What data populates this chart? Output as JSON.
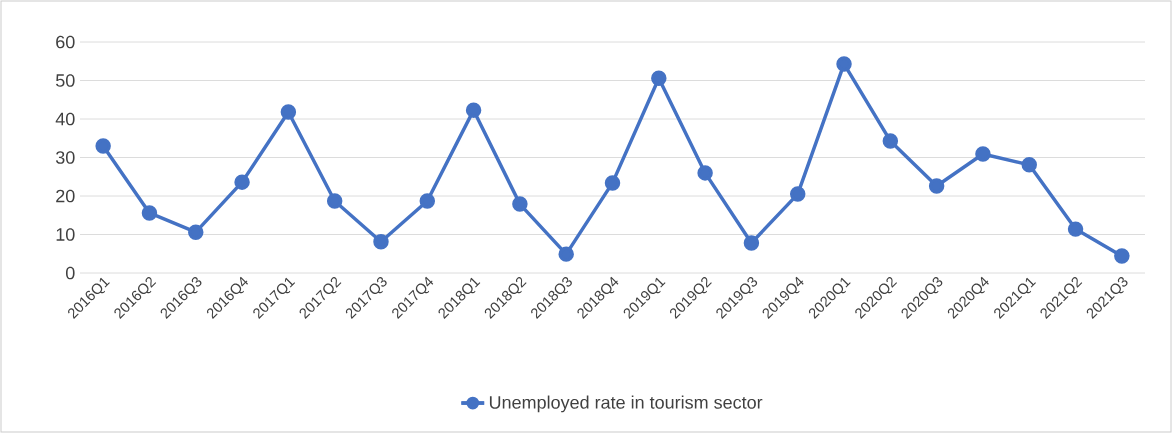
{
  "chart_data": {
    "type": "line",
    "categories": [
      "2016Q1",
      "2016Q2",
      "2016Q3",
      "2016Q4",
      "2017Q1",
      "2017Q2",
      "2017Q3",
      "2017Q4",
      "2018Q1",
      "2018Q2",
      "2018Q3",
      "2018Q4",
      "2019Q1",
      "2019Q2",
      "2019Q3",
      "2019Q4",
      "2020Q1",
      "2020Q2",
      "2020Q3",
      "2020Q4",
      "2021Q1",
      "2021Q2",
      "2021Q3"
    ],
    "series": [
      {
        "name": "Unemployed rate in tourism sector",
        "color": "#4472c4",
        "values": [
          33.0,
          15.6,
          10.6,
          23.6,
          41.8,
          18.7,
          8.1,
          18.7,
          42.3,
          17.9,
          4.9,
          23.4,
          50.6,
          26.0,
          7.8,
          20.5,
          54.3,
          34.3,
          22.6,
          30.9,
          28.1,
          11.4,
          4.4
        ]
      }
    ],
    "ylim": [
      0,
      60
    ],
    "yticks": [
      0,
      10,
      20,
      30,
      40,
      50,
      60
    ],
    "grid": "y",
    "legend": "bottom",
    "marker": "circle",
    "line_style": "solid"
  }
}
